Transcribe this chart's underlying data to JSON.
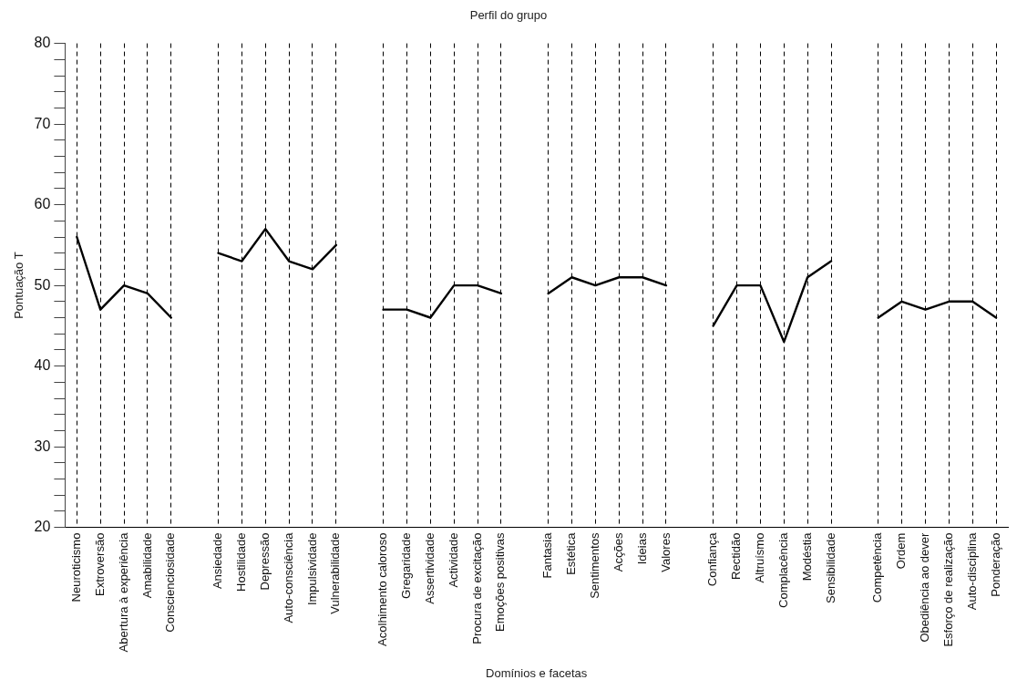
{
  "chart_data": {
    "type": "line",
    "title": "Perfil do grupo",
    "xlabel": "Domínios e facetas",
    "ylabel": "Pontuação T",
    "categories": [
      "Neuroticismo",
      "Extroversão",
      "Abertura à experiência",
      "Amabilidade",
      "Conscienciosidade",
      null,
      "Ansiedade",
      "Hostilidade",
      "Depressão",
      "Auto-consciência",
      "Impulsividade",
      "Vulnerabilidade",
      null,
      "Acolhimento caloroso",
      "Gregaridade",
      "Assertividade",
      "Actividade",
      "Procura de excitação",
      "Emoções positivas",
      null,
      "Fantasia",
      "Estética",
      "Sentimentos",
      "Acções",
      "Ideias",
      "Valores",
      null,
      "Confiança",
      "Rectidão",
      "Altruísmo",
      "Complacência",
      "Modéstia",
      "Sensibilidade",
      null,
      "Competência",
      "Ordem",
      "Obediência ao dever",
      "Esforço de realização",
      "Auto-disciplina",
      "Ponderação"
    ],
    "series": [
      {
        "color": "#000000",
        "values": [
          56,
          47,
          50,
          49,
          46,
          null,
          54,
          53,
          57,
          53,
          52,
          55,
          null,
          47,
          47,
          46,
          50,
          50,
          49,
          null,
          49,
          51,
          50,
          51,
          51,
          50,
          null,
          45,
          50,
          50,
          43,
          51,
          53,
          null,
          46,
          48,
          47,
          48,
          48,
          46
        ]
      }
    ],
    "ylim": [
      20,
      80
    ],
    "yticks": [
      20,
      {
        "value": 22,
        "label": null
      },
      {
        "value": 24,
        "label": null
      },
      {
        "value": 26,
        "label": null
      },
      {
        "value": 28,
        "label": null
      },
      30,
      {
        "value": 32,
        "label": null
      },
      {
        "value": 34,
        "label": null
      },
      {
        "value": 36,
        "label": null
      },
      {
        "value": 38,
        "label": null
      },
      40,
      {
        "value": 42,
        "label": null
      },
      {
        "value": 44,
        "label": null
      },
      {
        "value": 46,
        "label": null
      },
      {
        "value": 48,
        "label": null
      },
      50,
      {
        "value": 52,
        "label": null
      },
      {
        "value": 54,
        "label": null
      },
      {
        "value": 56,
        "label": null
      },
      {
        "value": 58,
        "label": null
      },
      60,
      {
        "value": 62,
        "label": null
      },
      {
        "value": 64,
        "label": null
      },
      {
        "value": 66,
        "label": null
      },
      {
        "value": 68,
        "label": null
      },
      70,
      {
        "value": 72,
        "label": null
      },
      {
        "value": 74,
        "label": null
      },
      {
        "value": 76,
        "label": null
      },
      {
        "value": 78,
        "label": null
      },
      80
    ],
    "grid": "x",
    "legend": false,
    "marker": "none",
    "line_style": "solid"
  }
}
